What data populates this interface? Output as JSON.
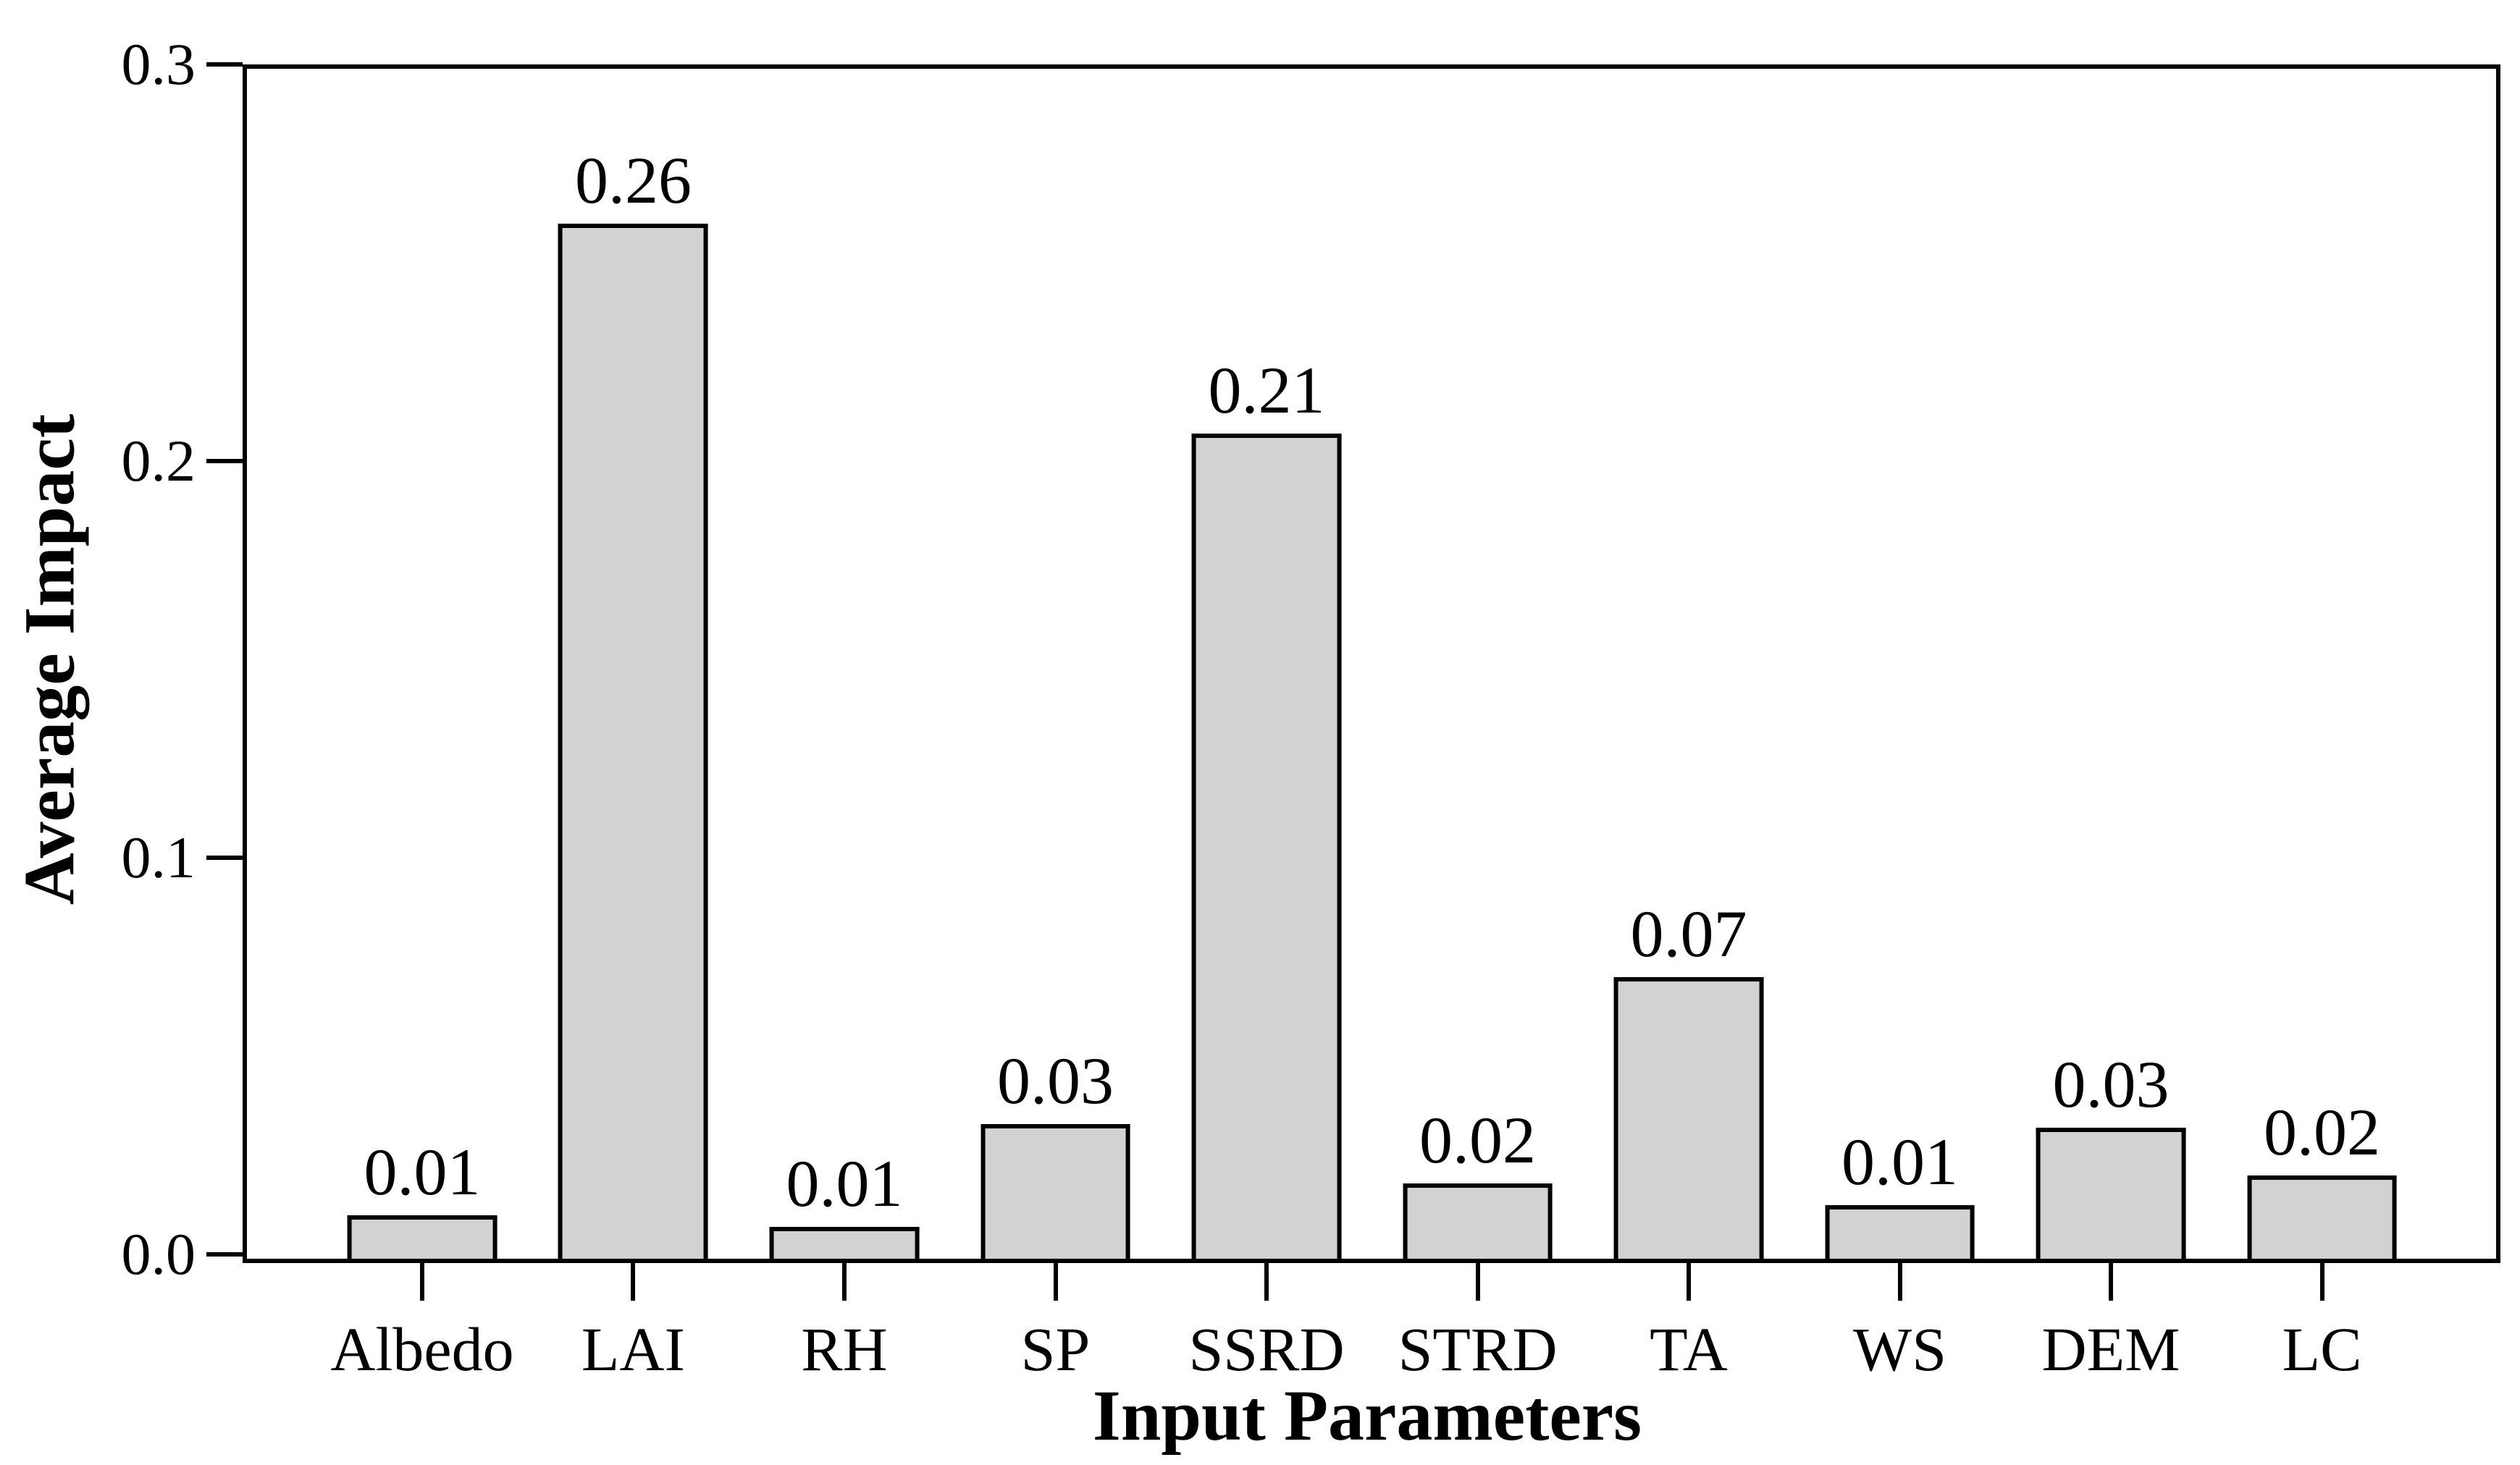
{
  "figure": {
    "background_color": "#ffffff",
    "text_color": "#000000",
    "bar_fill_color": "#d2d2d2",
    "bar_edge_color": "#000000",
    "y_axis_title": "Average Impact",
    "x_axis_title": "Input Parameters",
    "y_tick_labels": [
      "0.0",
      "0.1",
      "0.2",
      "0.3"
    ]
  },
  "chart_data": {
    "type": "bar",
    "title": "",
    "xlabel": "Input Parameters",
    "ylabel": "Average Impact",
    "categories": [
      "Albedo",
      "LAI",
      "RH",
      "SP",
      "SSRD",
      "STRD",
      "TA",
      "WS",
      "DEM",
      "LC"
    ],
    "values": [
      0.01,
      0.26,
      0.01,
      0.03,
      0.21,
      0.02,
      0.07,
      0.01,
      0.03,
      0.02
    ],
    "value_labels": [
      "0.01",
      "0.26",
      "0.01",
      "0.03",
      "0.21",
      "0.02",
      "0.07",
      "0.01",
      "0.03",
      "0.02"
    ],
    "bar_heights_precise": [
      0.011,
      0.261,
      0.008,
      0.034,
      0.208,
      0.019,
      0.071,
      0.0135,
      0.033,
      0.021
    ],
    "ylim": [
      0,
      0.3
    ],
    "yticks": [
      0.0,
      0.1,
      0.2,
      0.3
    ],
    "grid": false,
    "legend": null,
    "bar_color": "#d2d2d2",
    "bar_edge_color": "#000000"
  }
}
